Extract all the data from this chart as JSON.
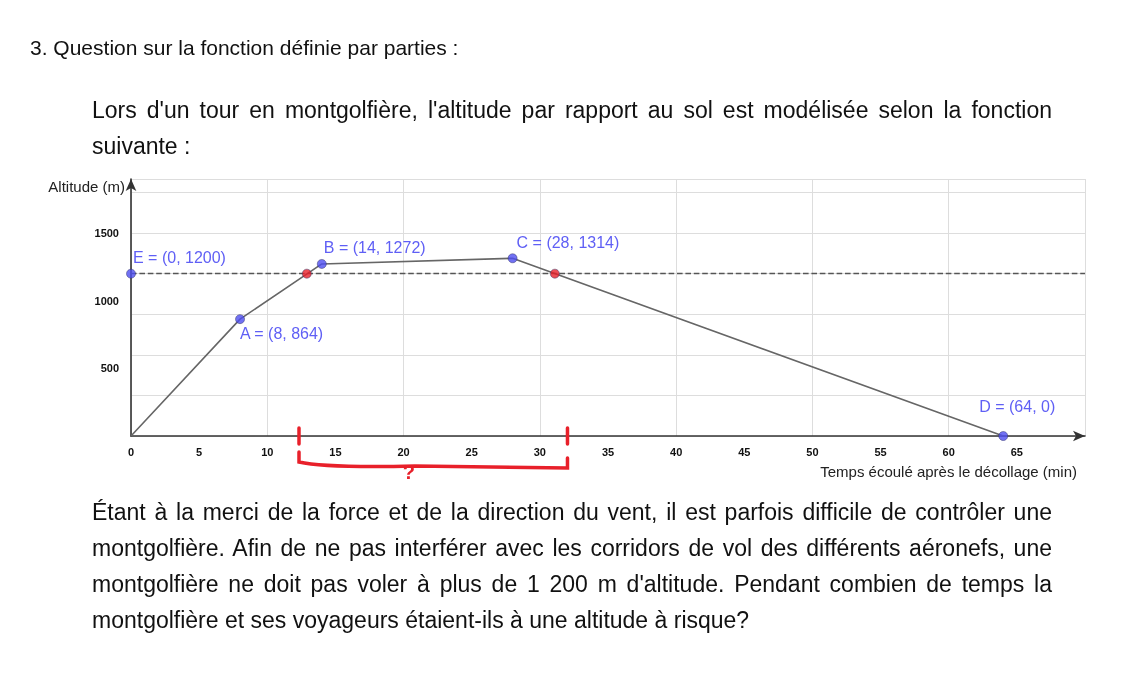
{
  "chart_data": {
    "type": "line",
    "title": "3.  Question sur la fonction définie par parties :",
    "subtitle": "Lors d'un tour en montgolfière, l'altitude par rapport au sol est modélisée selon la fonction suivante :",
    "xlabel": "Temps écoulé après le décollage (min)",
    "ylabel": "Altitude (m)",
    "xlim": [
      0,
      70
    ],
    "ylim": [
      0,
      1900
    ],
    "xticks": [
      0,
      5,
      10,
      15,
      20,
      25,
      30,
      35,
      40,
      45,
      50,
      55,
      60,
      65
    ],
    "yticks": [
      500,
      1000,
      1500
    ],
    "grid": true,
    "line_style": "solid",
    "series": [
      {
        "color": "#666666",
        "x": [
          0,
          8,
          14,
          28,
          64
        ],
        "values": [
          0,
          864,
          1272,
          1314,
          0
        ],
        "marker": "none"
      },
      {
        "type": "scatter",
        "color": "#4d4df0",
        "x": [
          0,
          8,
          14,
          28,
          64
        ],
        "values": [
          1200,
          864,
          1272,
          1314,
          0
        ],
        "marker": "circle"
      },
      {
        "type": "scatter",
        "color": "#e8202a",
        "x": [
          12.9,
          31.1
        ],
        "values": [
          1200,
          1200
        ],
        "marker": "circle"
      }
    ],
    "ref_lines": [
      {
        "axis": "y",
        "value": 1200,
        "color": "#555555",
        "line_style": "dashed"
      }
    ],
    "annotations": [
      "Étant à la merci de la force et de la direction du vent, il est parfois difficile de contrôler une montgolfière. Afin de ne pas interférer avec les corridors de vol des différents aéronefs, une montgolfière ne doit pas voler à plus de 1 200 m d'altitude. Pendant combien de temps la montgolfière et ses voyageurs étaient-ils à une altitude à risque?",
      "?",
      {
        "text": "E = (0, 1200)",
        "x": 0,
        "y": 1200
      },
      {
        "text": "A = (8, 864)",
        "x": 8,
        "y": 864
      },
      {
        "text": "B = (14, 1272)",
        "x": 14,
        "y": 1272
      },
      {
        "text": "C = (28, 1314)",
        "x": 28,
        "y": 1314
      },
      {
        "text": "D = (64, 0)",
        "x": 64,
        "y": 0
      }
    ]
  }
}
